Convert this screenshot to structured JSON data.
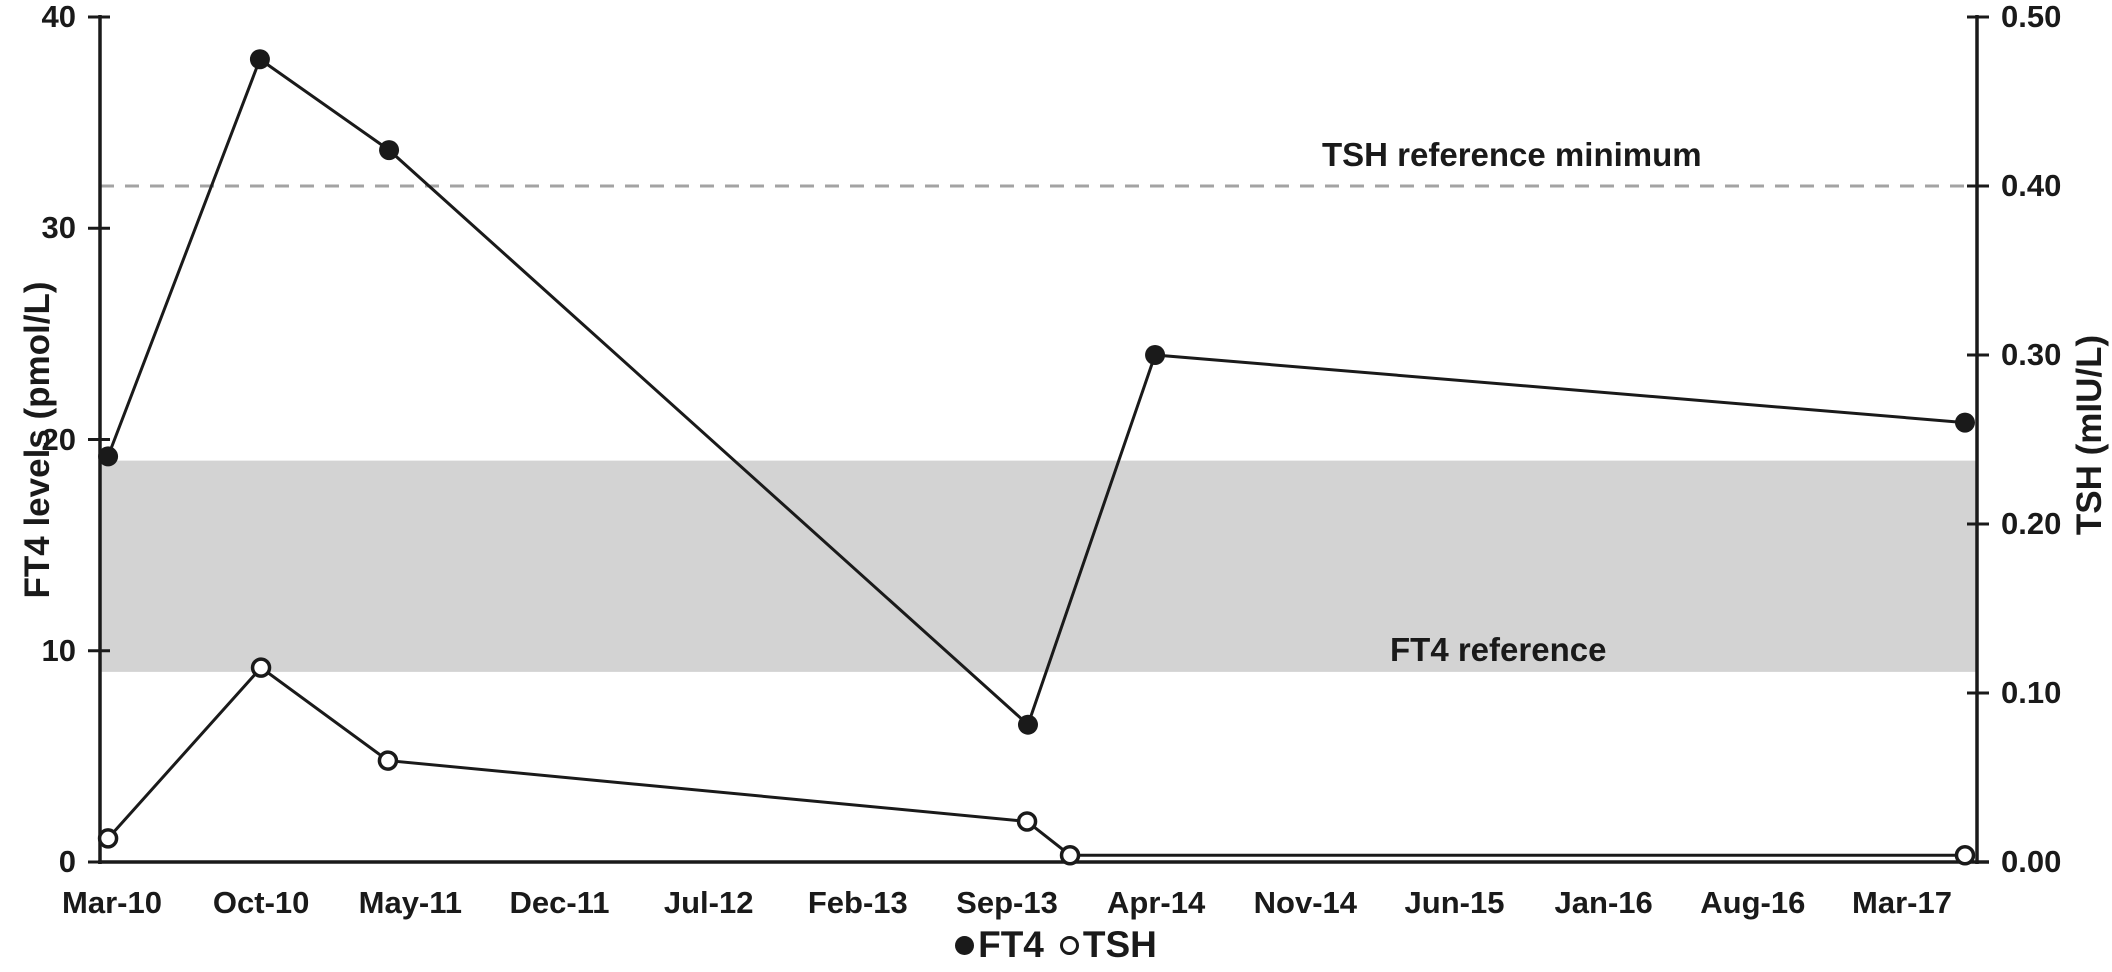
{
  "chart_data": {
    "type": "line",
    "title": "",
    "description": "Dual-axis line chart of FT4 and TSH levels over time (Mar-2010 to Mar-2017)",
    "x_axis": {
      "type": "date",
      "tick_labels": [
        "Mar-10",
        "Oct-10",
        "May-11",
        "Dec-11",
        "Jul-12",
        "Feb-13",
        "Sep-13",
        "Apr-14",
        "Nov-14",
        "Jun-15",
        "Jan-16",
        "Aug-16",
        "Mar-17"
      ]
    },
    "left_y_axis": {
      "label": "FT4 levels (pmol/L)",
      "min": 0,
      "max": 40,
      "ticks": [
        0,
        10,
        20,
        30,
        40
      ]
    },
    "right_y_axis": {
      "label": "TSH (mIU/L)",
      "min": 0,
      "max": 0.5,
      "ticks": [
        "0.00",
        "0.10",
        "0.20",
        "0.30",
        "0.40",
        "0.50"
      ]
    },
    "series": [
      {
        "name": "FT4",
        "axis": "left",
        "marker": "filled-circle",
        "color": "#1a1a1a",
        "points": [
          {
            "date": "Mar-10",
            "value": 19.2,
            "x_frac": 0.0043
          },
          {
            "date": "Oct-10",
            "value": 38.0,
            "x_frac": 0.0852
          },
          {
            "date": "May-11",
            "value": 33.7,
            "x_frac": 0.154
          },
          {
            "date": "Sep-13",
            "value": 6.5,
            "x_frac": 0.4944
          },
          {
            "date": "Apr-14",
            "value": 24.0,
            "x_frac": 0.5621
          },
          {
            "date": "Mar-17",
            "value": 20.8,
            "x_frac": 0.9936
          }
        ]
      },
      {
        "name": "TSH",
        "axis": "right",
        "marker": "open-circle",
        "color": "#1a1a1a",
        "points": [
          {
            "date": "Mar-10",
            "value": 0.014,
            "x_frac": 0.0043
          },
          {
            "date": "Oct-10",
            "value": 0.115,
            "x_frac": 0.0858
          },
          {
            "date": "May-11",
            "value": 0.06,
            "x_frac": 0.1534
          },
          {
            "date": "Sep-13",
            "value": 0.024,
            "x_frac": 0.4939
          },
          {
            "date": "Apr-14",
            "value": 0.004,
            "x_frac": 0.5168
          },
          {
            "date": "Mar-17",
            "value": 0.004,
            "x_frac": 0.9936
          }
        ]
      }
    ],
    "reference_band": {
      "label": "FT4 reference",
      "axis": "left",
      "from": 9,
      "to": 19,
      "color": "#d3d3d3"
    },
    "reference_line": {
      "label": "TSH reference minimum",
      "axis": "right",
      "value": 0.4,
      "style": "dashed",
      "color": "#a3a3a3"
    },
    "legend": {
      "position": "bottom-center",
      "entries": [
        "FT4",
        "TSH"
      ]
    },
    "grid": "off",
    "colors": {
      "series": "#1a1a1a",
      "axis": "#1a1a1a",
      "band": "#d3d3d3",
      "dashed_line": "#a3a3a3",
      "background": "#ffffff"
    }
  }
}
